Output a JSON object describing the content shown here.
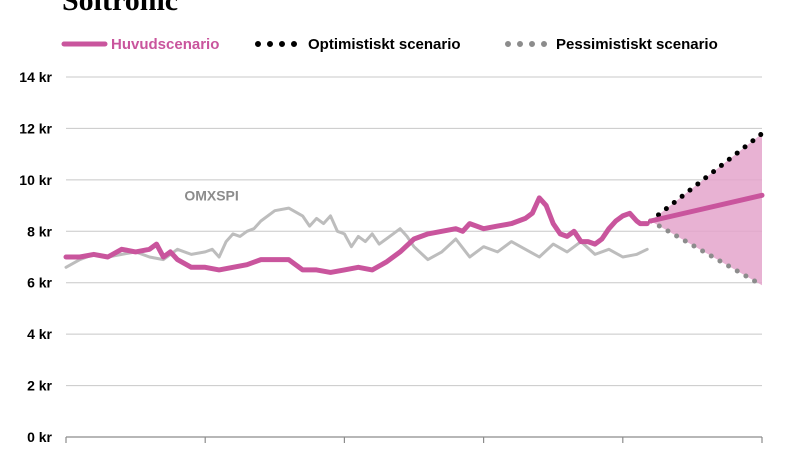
{
  "title": "Soltronic",
  "chart_data": {
    "type": "line",
    "ylim": [
      0,
      14
    ],
    "y_ticks": [
      "0 kr",
      "2 kr",
      "4 kr",
      "6 kr",
      "8 kr",
      "10 kr",
      "12 kr",
      "14 kr"
    ],
    "y_tick_values": [
      0,
      2,
      4,
      6,
      8,
      10,
      12,
      14
    ],
    "x_range": [
      0,
      100
    ],
    "grid": true,
    "legend": [
      {
        "label": "Huvudscenario",
        "color": "#c9559d",
        "style": "solid"
      },
      {
        "label": "Optimistiskt scenario",
        "color": "#000000",
        "style": "dotted"
      },
      {
        "label": "Pessimistiskt scenario",
        "color": "#8c8c8c",
        "style": "dotted"
      }
    ],
    "annotations": [
      {
        "text": "OMXSPI",
        "x": 17,
        "y": 9.2
      }
    ],
    "history": {
      "color": "#c9559d",
      "x": [
        0,
        2,
        4,
        6,
        8,
        10,
        12,
        13,
        14,
        15,
        16,
        18,
        20,
        22,
        24,
        26,
        28,
        30,
        32,
        34,
        36,
        38,
        40,
        42,
        44,
        46,
        48,
        50,
        52,
        54,
        56,
        57,
        58,
        60,
        62,
        64,
        65,
        66,
        67,
        68,
        69,
        70,
        71,
        72,
        73,
        74,
        75,
        76,
        77,
        78,
        79,
        80,
        81,
        82,
        82.5,
        83.5
      ],
      "y": [
        7.0,
        7.0,
        7.1,
        7.0,
        7.3,
        7.2,
        7.3,
        7.5,
        7.0,
        7.2,
        6.9,
        6.6,
        6.6,
        6.5,
        6.6,
        6.7,
        6.9,
        6.9,
        6.9,
        6.5,
        6.5,
        6.4,
        6.5,
        6.6,
        6.5,
        6.8,
        7.2,
        7.7,
        7.9,
        8.0,
        8.1,
        8.0,
        8.3,
        8.1,
        8.2,
        8.3,
        8.4,
        8.5,
        8.7,
        9.3,
        9.0,
        8.3,
        7.9,
        7.8,
        8.0,
        7.6,
        7.6,
        7.5,
        7.7,
        8.1,
        8.4,
        8.6,
        8.7,
        8.4,
        8.3,
        8.3
      ]
    },
    "omxspi": {
      "color": "#bdbdbd",
      "x": [
        0,
        2,
        4,
        6,
        8,
        10,
        12,
        14,
        16,
        18,
        20,
        21,
        22,
        23,
        24,
        25,
        26,
        27,
        28,
        30,
        32,
        34,
        35,
        36,
        37,
        38,
        39,
        40,
        41,
        42,
        43,
        44,
        45,
        46,
        47,
        48,
        49,
        50,
        52,
        54,
        56,
        58,
        60,
        62,
        64,
        66,
        68,
        70,
        72,
        74,
        76,
        78,
        80,
        82,
        83.5
      ],
      "y": [
        6.6,
        6.9,
        7.1,
        7.0,
        7.1,
        7.2,
        7.0,
        6.9,
        7.3,
        7.1,
        7.2,
        7.3,
        7.0,
        7.6,
        7.9,
        7.8,
        8.0,
        8.1,
        8.4,
        8.8,
        8.9,
        8.6,
        8.2,
        8.5,
        8.3,
        8.6,
        8.0,
        7.9,
        7.4,
        7.8,
        7.6,
        7.9,
        7.5,
        7.7,
        7.9,
        8.1,
        7.8,
        7.4,
        6.9,
        7.2,
        7.7,
        7.0,
        7.4,
        7.2,
        7.6,
        7.3,
        7.0,
        7.5,
        7.2,
        7.6,
        7.1,
        7.3,
        7.0,
        7.1,
        7.3
      ]
    },
    "forecast": {
      "x_start": 84,
      "x_end": 100,
      "start_value": 8.4,
      "main_end": 9.4,
      "optimistic_end": 11.8,
      "pessimistic_end": 5.9,
      "band_color": "#e4a5cb"
    }
  }
}
